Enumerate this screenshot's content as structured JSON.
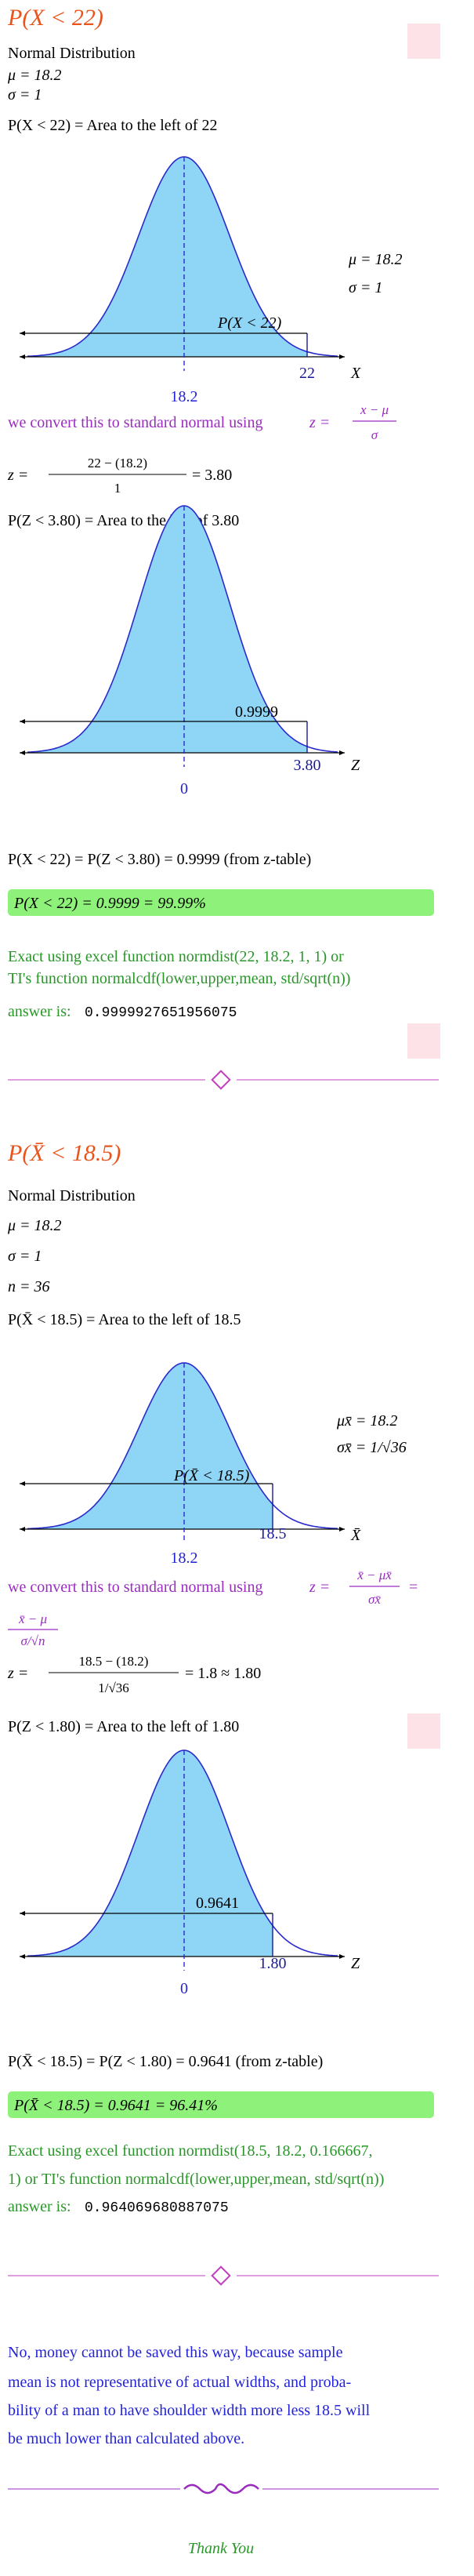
{
  "sections": [
    {
      "title": "P(X < 22)",
      "given": [
        "Normal Distribution",
        "μ = 18.2",
        "σ = 1"
      ],
      "area_statement": "P(X < 22) = Area to the left of 22",
      "graph1": {
        "params": [
          "μ = 18.2",
          "σ = 1"
        ],
        "region_label": "P(X < 22)",
        "mean_label": "18.2",
        "cut_label": "22",
        "axis_label": "X"
      },
      "convert_text": "we convert this to standard normal using",
      "convert_formula": {
        "lhs": "z =",
        "num": "x − μ",
        "den": "σ"
      },
      "z_calc": {
        "lhs": "z =",
        "num": "22 − (18.2)",
        "den": "1",
        "rhs": "= 3.80"
      },
      "z_area": "P(Z < 3.80) = Area to the left of 3.80",
      "graph2": {
        "region_label": "0.9999",
        "mean_label": "0",
        "cut_label": "3.80",
        "axis_label": "Z"
      },
      "result": "P(X < 22) = P(Z < 3.80) = 0.9999 (from z-table)",
      "boxed": "P(X < 22) = 0.9999 = 99.99%",
      "excel": [
        "Exact using excel function normdist(22, 18.2, 1, 1) or",
        "TI's function normalcdf(lower,upper,mean, std/sqrt(n))"
      ],
      "answer_label": "answer is:",
      "answer": "0.9999927651956075"
    },
    {
      "title": "P(X̄ < 18.5)",
      "given": [
        "Normal Distribution",
        "μ = 18.2",
        "σ = 1",
        "n = 36"
      ],
      "area_statement": "P(X̄ < 18.5) = Area to the left of 18.5",
      "graph1": {
        "params": [
          "μx̄ = 18.2",
          "σx̄ = 1/√36"
        ],
        "region_label": "P(X̄ < 18.5)",
        "mean_label": "18.2",
        "cut_label": "18.5",
        "axis_label": "X̄"
      },
      "convert_text": "we convert this to standard normal using",
      "convert_formula": {
        "lhs": "z =",
        "num": "x̄ − μx̄",
        "den": "σx̄",
        "rhs": "=",
        "num2": "x̄ − μ",
        "den2": "σ/√n"
      },
      "z_calc": {
        "lhs": "z =",
        "num": "18.5 − (18.2)",
        "den": "1/√36",
        "rhs": "= 1.8 ≈ 1.80"
      },
      "z_area": "P(Z < 1.80) = Area to the left of 1.80",
      "graph2": {
        "region_label": "0.9641",
        "mean_label": "0",
        "cut_label": "1.80",
        "axis_label": "Z"
      },
      "result": "P(X̄ < 18.5) = P(Z < 1.80) = 0.9641 (from z-table)",
      "boxed": "P(X̄ < 18.5) = 0.9641 = 96.41%",
      "excel": [
        "Exact using excel function normdist(18.5, 18.2, 0.166667,",
        "1) or TI's function normalcdf(lower,upper,mean, std/sqrt(n))"
      ],
      "answer_label": "answer is:",
      "answer": "0.964069680887075"
    }
  ],
  "conclusion": [
    "No, money cannot be saved this way, because sample",
    "mean is not representative of actual widths, and proba-",
    "bility of a man to have shoulder width more less 18.5 will",
    "be much lower than calculated above."
  ],
  "thank_you": "Thank You"
}
